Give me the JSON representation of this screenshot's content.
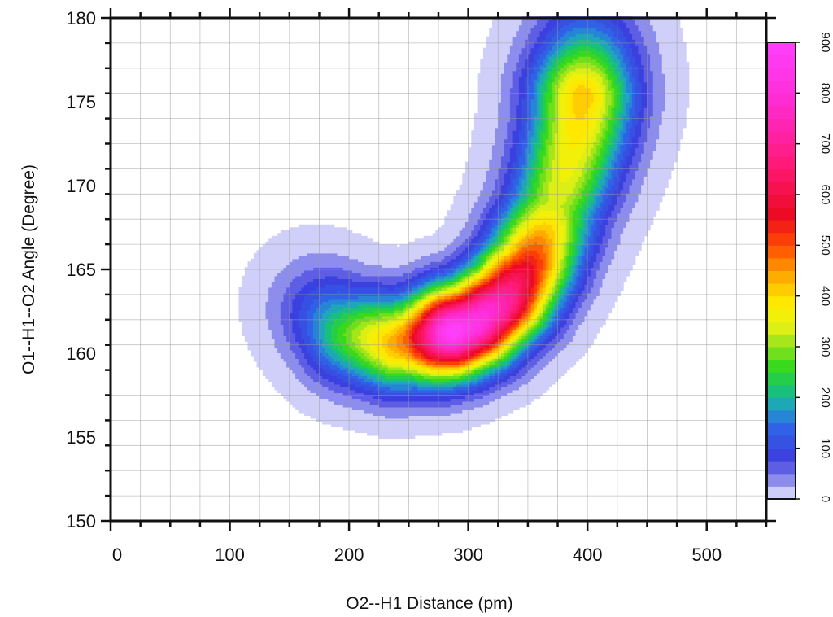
{
  "chart_data": {
    "type": "heatmap",
    "subtype": "filled-contour",
    "title": "",
    "xlabel": "O2--H1 Distance (pm)",
    "ylabel": "O1--H1--O2 Angle (Degree)",
    "xlim": [
      0,
      550
    ],
    "ylim": [
      150,
      180
    ],
    "x_ticks": [
      0,
      100,
      200,
      300,
      400,
      500
    ],
    "x_tick_labels": [
      "0",
      "100",
      "200",
      "300",
      "400",
      "500"
    ],
    "y_ticks": [
      150,
      155,
      160,
      165,
      170,
      175,
      180
    ],
    "y_tick_labels": [
      "150",
      "155",
      "160",
      "165",
      "170",
      "175",
      "180"
    ],
    "grid": true,
    "grid_step": {
      "x": 25,
      "y": 1.5
    },
    "colorbar": {
      "range": [
        0,
        900
      ],
      "ticks": [
        0,
        100,
        200,
        300,
        400,
        500,
        600,
        700,
        800,
        900
      ],
      "tick_labels": [
        "0",
        "100",
        "200",
        "300",
        "400",
        "500",
        "600",
        "700",
        "800",
        "900"
      ],
      "colors": [
        "#f2f2ff",
        "#9a9af0",
        "#3d3dde",
        "#2f63e6",
        "#1fa0c8",
        "#18c76a",
        "#34d81d",
        "#8be21c",
        "#e2f014",
        "#fff000",
        "#ffc400",
        "#ff8c00",
        "#ff4a00",
        "#ec0a22",
        "#ff1a78",
        "#ff2ad0",
        "#ff40ff"
      ],
      "color_stops": [
        0,
        30,
        80,
        140,
        180,
        220,
        260,
        300,
        340,
        380,
        420,
        460,
        500,
        560,
        660,
        780,
        900
      ]
    },
    "peaks": [
      {
        "x": 275,
        "y": 161,
        "value": 900
      },
      {
        "x": 392,
        "y": 173.5,
        "value": 420
      }
    ],
    "density_model": {
      "path": [
        [
          168,
          163.0
        ],
        [
          200,
          161.2
        ],
        [
          240,
          160.6
        ],
        [
          275,
          161.0
        ],
        [
          305,
          161.8
        ],
        [
          330,
          163.2
        ],
        [
          350,
          165.2
        ],
        [
          368,
          168.0
        ],
        [
          382,
          170.8
        ],
        [
          392,
          173.5
        ],
        [
          398,
          176.5
        ],
        [
          400,
          178.5
        ]
      ],
      "peak_values": [
        {
          "s": 0.0,
          "v": 60
        },
        {
          "s": 0.1,
          "v": 280
        },
        {
          "s": 0.22,
          "v": 520
        },
        {
          "s": 0.28,
          "v": 900
        },
        {
          "s": 0.37,
          "v": 780
        },
        {
          "s": 0.48,
          "v": 560
        },
        {
          "s": 0.62,
          "v": 330
        },
        {
          "s": 0.78,
          "v": 380
        },
        {
          "s": 0.88,
          "v": 420
        },
        {
          "s": 1.0,
          "v": 90
        }
      ],
      "width_x": [
        {
          "s": 0,
          "w": 26
        },
        {
          "s": 0.5,
          "w": 26
        },
        {
          "s": 1,
          "w": 30
        }
      ],
      "width_y": [
        {
          "s": 0,
          "w": 2.0
        },
        {
          "s": 0.5,
          "w": 1.6
        },
        {
          "s": 1,
          "w": 2.6
        }
      ]
    }
  }
}
